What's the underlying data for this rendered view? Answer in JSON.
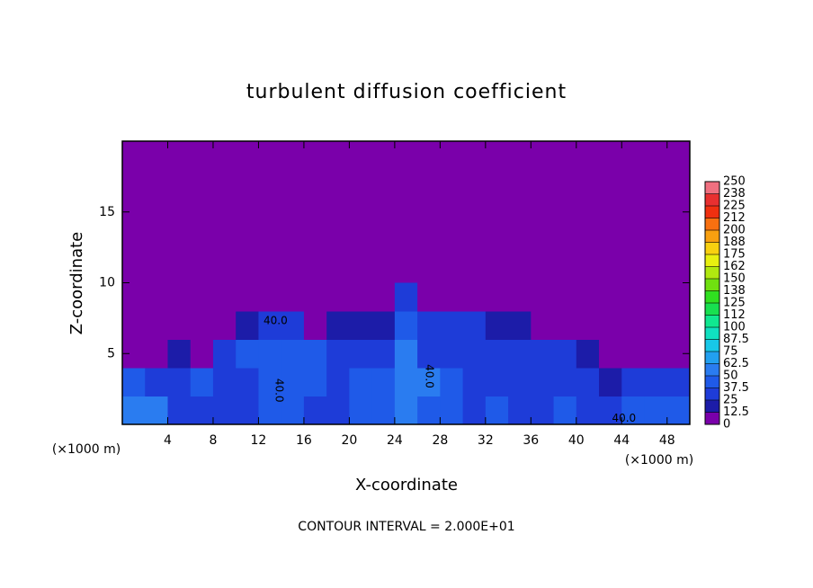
{
  "chart_data": {
    "type": "heatmap",
    "title": "turbulent diffusion coefficient",
    "x_label": "X-coordinate",
    "y_label": "Z-coordinate",
    "x_unit": "(×1000 m)",
    "footer": "CONTOUR INTERVAL = 2.000E+01",
    "xlim": [
      0,
      50
    ],
    "ylim": [
      0,
      20
    ],
    "xticks": [
      4,
      8,
      12,
      16,
      20,
      24,
      28,
      32,
      36,
      40,
      44,
      48
    ],
    "yticks": [
      5,
      10,
      15
    ],
    "x_edges": [
      0,
      2,
      4,
      6,
      8,
      10,
      12,
      14,
      16,
      18,
      20,
      22,
      24,
      26,
      28,
      30,
      32,
      34,
      36,
      38,
      40,
      42,
      44,
      46,
      48,
      50
    ],
    "y_edges": [
      0,
      2,
      4,
      6,
      8,
      10
    ],
    "z": [
      [
        60,
        50,
        35,
        30,
        30,
        30,
        40,
        45,
        35,
        35,
        40,
        45,
        55,
        40,
        40,
        35,
        40,
        35,
        35,
        40,
        35,
        35,
        45,
        40,
        45
      ],
      [
        40,
        35,
        25,
        40,
        25,
        35,
        45,
        40,
        45,
        35,
        40,
        40,
        50,
        55,
        40,
        35,
        35,
        30,
        35,
        35,
        30,
        20,
        30,
        35,
        30
      ],
      [
        10,
        10,
        15,
        10,
        35,
        40,
        45,
        40,
        40,
        35,
        35,
        35,
        55,
        35,
        35,
        35,
        35,
        30,
        30,
        25,
        15,
        10,
        10,
        10,
        10
      ],
      [
        0,
        0,
        0,
        0,
        5,
        20,
        30,
        25,
        10,
        15,
        20,
        20,
        45,
        25,
        25,
        25,
        20,
        15,
        10,
        5,
        0,
        0,
        0,
        0,
        0
      ],
      [
        0,
        0,
        0,
        0,
        0,
        0,
        0,
        0,
        0,
        0,
        0,
        0,
        30,
        0,
        0,
        0,
        0,
        0,
        0,
        0,
        0,
        0,
        0,
        0,
        0
      ]
    ],
    "contour_labels": [
      {
        "text": "40.0",
        "x": 27,
        "y": 3.4
      },
      {
        "text": "40.0",
        "x": 13.8,
        "y": 2.4
      },
      {
        "text": "40.0",
        "x": 44.2,
        "y": 0.4
      },
      {
        "text": "40.0",
        "x": 13.5,
        "y": 7.3
      }
    ],
    "colorbar": {
      "ticks": [
        0,
        12.5,
        25,
        37.5,
        50,
        62.5,
        75,
        87.5,
        100,
        {
          "value": 112.5,
          "label": "112"
        },
        125,
        {
          "value": 137.5,
          "label": "138"
        },
        150,
        {
          "value": 162.5,
          "label": "162"
        },
        175,
        {
          "value": 187.5,
          "label": "188"
        },
        200,
        {
          "value": 212.5,
          "label": "212"
        },
        225,
        {
          "value": 237.5,
          "label": "238"
        },
        250
      ],
      "colors": [
        "#7a00aa",
        "#1c1ca8",
        "#1e3cd8",
        "#1f5ae8",
        "#2a7cf0",
        "#22a0f0",
        "#18c8e8",
        "#10e0c0",
        "#10e890",
        "#18e050",
        "#30e020",
        "#70e010",
        "#b0e810",
        "#e8f010",
        "#f8d010",
        "#f8a010",
        "#f87010",
        "#f03010",
        "#e83030",
        "#f07080"
      ]
    }
  }
}
